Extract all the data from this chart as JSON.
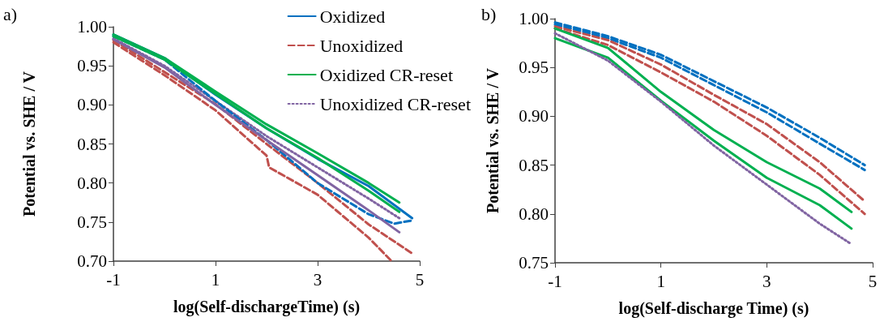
{
  "chart_data": [
    {
      "type": "line",
      "annotations": [
        "a)"
      ],
      "xlabel": "log(Self-dischargeTime) (s)",
      "ylabel": "Potential vs. SHE / V",
      "xlim": [
        -1,
        5
      ],
      "xticks": [
        -1,
        1,
        3,
        5
      ],
      "ylim": [
        0.7,
        1.0
      ],
      "yticks": [
        {
          "value": 0.7,
          "label": "0.70"
        },
        {
          "value": 0.75,
          "label": "0.75"
        },
        {
          "value": 0.8,
          "label": "0.80"
        },
        {
          "value": 0.85,
          "label": "0.85"
        },
        {
          "value": 0.9,
          "label": "0.90"
        },
        {
          "value": 0.95,
          "label": "0.95"
        },
        {
          "value": 1.0,
          "label": "1.00"
        }
      ],
      "grid": false,
      "legend": "top right",
      "marker": "none",
      "series": [
        {
          "name": "Oxidized",
          "color": "#0070c0",
          "line_style": "solid",
          "x": [
            -1,
            0,
            1,
            2,
            3,
            4,
            4.85
          ],
          "values": [
            0.99,
            0.96,
            0.913,
            0.87,
            0.831,
            0.796,
            0.755
          ]
        },
        {
          "name": "Unoxidized",
          "color": "#c0504d",
          "line_style": "dashed",
          "x": [
            -1,
            0,
            1,
            2,
            3,
            4,
            4.85
          ],
          "values": [
            0.983,
            0.942,
            0.901,
            0.85,
            0.8,
            0.747,
            0.71
          ]
        },
        {
          "name": "Oxidized CR-reset",
          "color": "#00b050",
          "line_style": "solid",
          "x": [
            -1,
            0,
            1,
            2,
            3,
            4,
            4.6
          ],
          "values": [
            0.99,
            0.96,
            0.917,
            0.875,
            0.838,
            0.8,
            0.775
          ]
        },
        {
          "name": "Unoxidized CR-reset",
          "color": "#8064a2",
          "line_style": "dotted",
          "x": [
            -1,
            0,
            1,
            2,
            3,
            4,
            4.6
          ],
          "values": [
            0.985,
            0.95,
            0.905,
            0.86,
            0.82,
            0.78,
            0.755
          ]
        },
        {
          "color": "#0070c0",
          "line_style": "dashed",
          "x": [
            -1,
            0,
            1,
            2,
            3,
            4,
            4.5,
            4.85
          ],
          "values": [
            0.988,
            0.958,
            0.905,
            0.855,
            0.8,
            0.76,
            0.748,
            0.752
          ]
        },
        {
          "color": "#c0504d",
          "line_style": "dashed",
          "x": [
            -1,
            0,
            1,
            2,
            2.05,
            3,
            4,
            4.45
          ],
          "values": [
            0.98,
            0.938,
            0.893,
            0.835,
            0.82,
            0.785,
            0.73,
            0.7
          ]
        },
        {
          "color": "#00b050",
          "line_style": "solid",
          "x": [
            -1,
            0,
            1,
            2,
            3,
            4,
            4.6
          ],
          "values": [
            0.988,
            0.958,
            0.914,
            0.87,
            0.832,
            0.79,
            0.763
          ]
        },
        {
          "color": "#8064a2",
          "line_style": "solid",
          "x": [
            -1,
            0,
            1,
            2,
            3,
            4,
            4.6
          ],
          "values": [
            0.984,
            0.948,
            0.9,
            0.855,
            0.81,
            0.765,
            0.737
          ]
        }
      ]
    },
    {
      "type": "line",
      "annotations": [
        "b)"
      ],
      "xlabel": "log(Self-discharge Time) (s)",
      "ylabel": "Potential vs. SHE / V",
      "xlim": [
        -1,
        5
      ],
      "xticks": [
        -1,
        1,
        3,
        5
      ],
      "ylim": [
        0.75,
        1.0
      ],
      "yticks": [
        {
          "value": 0.75,
          "label": "0.75"
        },
        {
          "value": 0.8,
          "label": "0.80"
        },
        {
          "value": 0.85,
          "label": "0.85"
        },
        {
          "value": 0.9,
          "label": "0.90"
        },
        {
          "value": 0.95,
          "label": "0.95"
        },
        {
          "value": 1.0,
          "label": "1.00"
        }
      ],
      "grid": false,
      "marker": "none",
      "series": [
        {
          "color": "#0070c0",
          "line_style": "dashed",
          "x": [
            -1,
            0,
            1,
            2,
            3,
            4,
            4.85
          ],
          "values": [
            0.996,
            0.982,
            0.963,
            0.936,
            0.909,
            0.878,
            0.85
          ]
        },
        {
          "color": "#0070c0",
          "line_style": "dashed",
          "x": [
            -1,
            0,
            1,
            2,
            3,
            4,
            4.85
          ],
          "values": [
            0.994,
            0.98,
            0.96,
            0.932,
            0.904,
            0.872,
            0.845
          ]
        },
        {
          "color": "#c0504d",
          "line_style": "dashed",
          "x": [
            -1,
            0,
            1,
            2,
            3,
            4,
            4.85
          ],
          "values": [
            0.992,
            0.978,
            0.953,
            0.922,
            0.892,
            0.853,
            0.813
          ]
        },
        {
          "color": "#c0504d",
          "line_style": "dashed",
          "x": [
            -1,
            0,
            1,
            2,
            3,
            4,
            4.85
          ],
          "values": [
            0.99,
            0.973,
            0.945,
            0.915,
            0.88,
            0.84,
            0.8
          ]
        },
        {
          "color": "#00b050",
          "line_style": "solid",
          "x": [
            -1,
            0,
            1,
            2,
            3,
            4,
            4.6
          ],
          "values": [
            0.99,
            0.97,
            0.925,
            0.886,
            0.853,
            0.826,
            0.802
          ]
        },
        {
          "color": "#00b050",
          "line_style": "solid",
          "x": [
            -1,
            0,
            1,
            2,
            3,
            4,
            4.6
          ],
          "values": [
            0.98,
            0.96,
            0.916,
            0.875,
            0.837,
            0.809,
            0.785
          ]
        },
        {
          "color": "#8064a2",
          "line_style": "dotted",
          "x": [
            -1,
            0,
            1,
            2,
            3,
            4,
            4.6
          ],
          "values": [
            0.985,
            0.957,
            0.915,
            0.87,
            0.83,
            0.79,
            0.769
          ]
        }
      ]
    }
  ]
}
